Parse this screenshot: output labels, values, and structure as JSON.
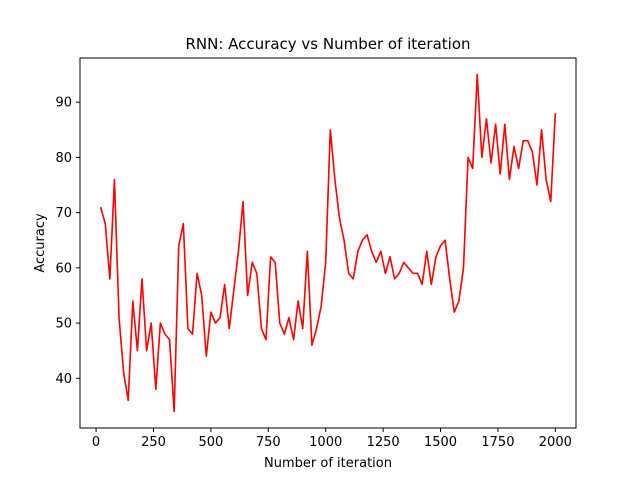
{
  "chart_data": {
    "type": "line",
    "title": "RNN: Accuracy vs Number of iteration",
    "xlabel": "Number of iteration",
    "ylabel": "Accuracy",
    "xlim": [
      -70,
      2090
    ],
    "ylim": [
      31,
      98
    ],
    "xticks": [
      0,
      250,
      500,
      750,
      1000,
      1250,
      1500,
      1750,
      2000
    ],
    "yticks": [
      40,
      50,
      60,
      70,
      80,
      90
    ],
    "grid": false,
    "legend": "none",
    "series": [
      {
        "color": "#ff0000",
        "x": [
          20,
          40,
          60,
          80,
          100,
          120,
          140,
          160,
          180,
          200,
          220,
          240,
          260,
          280,
          300,
          320,
          340,
          360,
          380,
          400,
          420,
          440,
          460,
          480,
          500,
          520,
          540,
          560,
          580,
          600,
          620,
          640,
          660,
          680,
          700,
          720,
          740,
          760,
          780,
          800,
          820,
          840,
          860,
          880,
          900,
          920,
          940,
          960,
          980,
          1000,
          1020,
          1040,
          1060,
          1080,
          1100,
          1120,
          1140,
          1160,
          1180,
          1200,
          1220,
          1240,
          1260,
          1280,
          1300,
          1320,
          1340,
          1360,
          1380,
          1400,
          1420,
          1440,
          1460,
          1480,
          1500,
          1520,
          1540,
          1560,
          1580,
          1600,
          1620,
          1640,
          1660,
          1680,
          1700,
          1720,
          1740,
          1760,
          1780,
          1800,
          1820,
          1840,
          1860,
          1880,
          1900,
          1920,
          1940,
          1960,
          1980,
          2000
        ],
        "values": [
          71,
          68,
          58,
          76,
          51,
          41,
          36,
          54,
          45,
          58,
          45,
          50,
          38,
          50,
          48,
          47,
          34,
          64,
          68,
          49,
          48,
          59,
          55,
          44,
          52,
          50,
          51,
          57,
          49,
          56,
          63,
          72,
          55,
          61,
          59,
          49,
          47,
          62,
          61,
          50,
          48,
          51,
          47,
          54,
          49,
          63,
          46,
          49,
          53,
          61,
          85,
          76,
          69,
          65,
          59,
          58,
          63,
          65,
          66,
          63,
          61,
          63,
          59,
          62,
          58,
          59,
          61,
          60,
          59,
          59,
          57,
          63,
          57,
          62,
          64,
          65,
          58,
          52,
          54,
          60,
          80,
          78,
          95,
          80,
          87,
          79,
          86,
          77,
          86,
          76,
          82,
          78,
          83,
          83,
          81,
          75,
          85,
          76,
          72,
          88
        ]
      }
    ]
  }
}
